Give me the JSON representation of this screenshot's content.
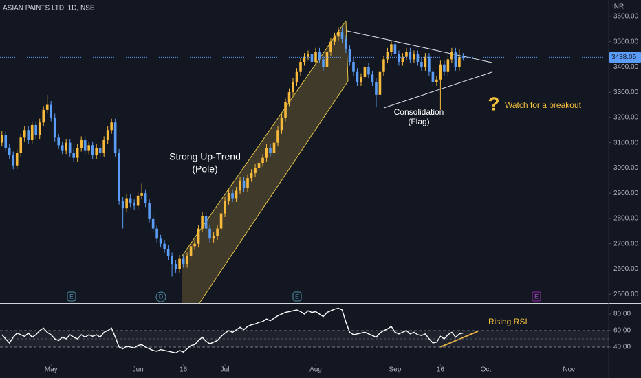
{
  "chart_data": [
    {
      "type": "candlestick",
      "title": "ASIAN PAINTS LTD, 1D, NSE",
      "y_axis_label": "INR",
      "up_color": "#f6b93b",
      "down_color": "#5b9cf6",
      "xlim": [
        -0.5,
        160.5
      ],
      "xticks": [
        {
          "value": 13,
          "label": "May"
        },
        {
          "value": 36,
          "label": "Jun"
        },
        {
          "value": 48,
          "label": "16"
        },
        {
          "value": 59,
          "label": "Jul"
        },
        {
          "value": 83,
          "label": "Aug"
        },
        {
          "value": 104,
          "label": "Sep"
        },
        {
          "value": 116,
          "label": "16"
        },
        {
          "value": 128,
          "label": "Oct"
        },
        {
          "value": 150,
          "label": "Nov"
        }
      ],
      "ylim": [
        2465,
        3665
      ],
      "yticks": [
        {
          "value": 2500,
          "label": "2500.00"
        },
        {
          "value": 2600,
          "label": "2600.00"
        },
        {
          "value": 2700,
          "label": "2700.00"
        },
        {
          "value": 2800,
          "label": "2800.00"
        },
        {
          "value": 2900,
          "label": "2900.00"
        },
        {
          "value": 3000,
          "label": "3000.00"
        },
        {
          "value": 3100,
          "label": "3100.00"
        },
        {
          "value": 3200,
          "label": "3200.00"
        },
        {
          "value": 3300,
          "label": "3300.00"
        },
        {
          "value": 3400,
          "label": "3400.00"
        },
        {
          "value": 3500,
          "label": "3500.00"
        },
        {
          "value": 3600,
          "label": "3600.00"
        }
      ],
      "open": [
        3100,
        3130,
        3080,
        3050,
        3010,
        3060,
        3120,
        3150,
        3110,
        3170,
        3130,
        3180,
        3230,
        3250,
        3200,
        3120,
        3090,
        3070,
        3100,
        3060,
        3040,
        3080,
        3110,
        3070,
        3090,
        3050,
        3080,
        3060,
        3110,
        3150,
        3180,
        3060,
        2870,
        2840,
        2880,
        2860,
        2850,
        2890,
        2900,
        2860,
        2800,
        2760,
        2720,
        2700,
        2680,
        2650,
        2620,
        2600,
        2640,
        2620,
        2650,
        2690,
        2700,
        2760,
        2810,
        2760,
        2720,
        2730,
        2760,
        2820,
        2870,
        2900,
        2880,
        2910,
        2950,
        2920,
        2960,
        2980,
        3000,
        3020,
        3040,
        3080,
        3060,
        3100,
        3150,
        3200,
        3260,
        3300,
        3340,
        3380,
        3420,
        3440,
        3450,
        3420,
        3460,
        3430,
        3400,
        3460,
        3500,
        3520,
        3540,
        3510,
        3470,
        3420,
        3380,
        3340,
        3360,
        3400,
        3370,
        3340,
        3290,
        3380,
        3430,
        3460,
        3490,
        3450,
        3420,
        3440,
        3460,
        3430,
        3450,
        3420,
        3400,
        3440,
        3380,
        3340,
        3350,
        3410,
        3380,
        3430,
        3460,
        3400,
        3440
      ],
      "high": [
        3145,
        3145,
        3095,
        3065,
        3075,
        3135,
        3165,
        3165,
        3185,
        3185,
        3195,
        3245,
        3290,
        3265,
        3215,
        3135,
        3105,
        3115,
        3115,
        3075,
        3095,
        3125,
        3125,
        3105,
        3105,
        3095,
        3095,
        3125,
        3165,
        3195,
        3195,
        3075,
        2885,
        2895,
        2895,
        2875,
        2905,
        2940,
        2915,
        2875,
        2815,
        2775,
        2735,
        2715,
        2695,
        2665,
        2635,
        2655,
        2655,
        2665,
        2705,
        2715,
        2775,
        2825,
        2825,
        2775,
        2745,
        2775,
        2835,
        2885,
        2915,
        2915,
        2925,
        2965,
        2965,
        2975,
        2995,
        3015,
        3035,
        3055,
        3095,
        3095,
        3115,
        3165,
        3215,
        3275,
        3315,
        3355,
        3395,
        3435,
        3455,
        3465,
        3465,
        3475,
        3475,
        3445,
        3475,
        3515,
        3535,
        3555,
        3555,
        3525,
        3485,
        3435,
        3395,
        3375,
        3415,
        3415,
        3385,
        3355,
        3395,
        3445,
        3475,
        3505,
        3505,
        3465,
        3455,
        3475,
        3475,
        3465,
        3465,
        3435,
        3455,
        3455,
        3395,
        3365,
        3425,
        3425,
        3445,
        3475,
        3475,
        3470,
        3455
      ],
      "low": [
        3085,
        3065,
        3035,
        2995,
        2995,
        3045,
        3105,
        3095,
        3095,
        3115,
        3115,
        3165,
        3215,
        3185,
        3105,
        3075,
        3055,
        3055,
        3045,
        3025,
        3025,
        3065,
        3055,
        3055,
        3035,
        3035,
        3045,
        3045,
        3095,
        3135,
        3045,
        2855,
        2760,
        2825,
        2845,
        2835,
        2835,
        2875,
        2845,
        2785,
        2745,
        2705,
        2685,
        2665,
        2635,
        2570,
        2585,
        2585,
        2605,
        2605,
        2635,
        2675,
        2685,
        2745,
        2745,
        2705,
        2705,
        2715,
        2745,
        2805,
        2855,
        2865,
        2865,
        2895,
        2905,
        2905,
        2945,
        2965,
        2985,
        3005,
        3025,
        3045,
        3045,
        3085,
        3135,
        3185,
        3245,
        3285,
        3325,
        3365,
        3405,
        3425,
        3405,
        3405,
        3415,
        3385,
        3385,
        3445,
        3485,
        3505,
        3495,
        3455,
        3405,
        3365,
        3325,
        3325,
        3345,
        3355,
        3325,
        3240,
        3275,
        3365,
        3415,
        3445,
        3435,
        3405,
        3405,
        3425,
        3415,
        3415,
        3405,
        3385,
        3385,
        3365,
        3325,
        3325,
        3230,
        3365,
        3365,
        3415,
        3385,
        3385,
        3425
      ],
      "close": [
        3130,
        3080,
        3050,
        3010,
        3060,
        3120,
        3150,
        3110,
        3170,
        3130,
        3180,
        3230,
        3250,
        3200,
        3120,
        3090,
        3070,
        3100,
        3060,
        3040,
        3080,
        3110,
        3070,
        3090,
        3050,
        3080,
        3060,
        3110,
        3150,
        3180,
        3060,
        2870,
        2840,
        2880,
        2860,
        2850,
        2890,
        2900,
        2860,
        2800,
        2760,
        2720,
        2700,
        2680,
        2650,
        2620,
        2600,
        2640,
        2620,
        2650,
        2690,
        2700,
        2760,
        2810,
        2760,
        2720,
        2730,
        2760,
        2820,
        2870,
        2900,
        2880,
        2910,
        2950,
        2920,
        2960,
        2980,
        3000,
        3020,
        3040,
        3080,
        3060,
        3100,
        3150,
        3200,
        3260,
        3300,
        3340,
        3380,
        3420,
        3440,
        3450,
        3420,
        3460,
        3430,
        3400,
        3460,
        3500,
        3520,
        3540,
        3510,
        3470,
        3420,
        3380,
        3340,
        3360,
        3400,
        3370,
        3340,
        3290,
        3380,
        3430,
        3460,
        3490,
        3450,
        3420,
        3440,
        3460,
        3430,
        3450,
        3420,
        3400,
        3440,
        3380,
        3340,
        3350,
        3410,
        3380,
        3430,
        3460,
        3400,
        3440,
        3438.05
      ],
      "annotations": [
        "Strong Up-Trend",
        "(Pole)",
        "Consolidation",
        "(Flag)",
        "?",
        "Watch for a breakout"
      ],
      "events": [
        "E",
        "D",
        "E",
        "E"
      ]
    },
    {
      "type": "line",
      "color": "#ffffff",
      "annotation": "Rising RSI",
      "ylim": [
        20,
        90
      ],
      "yticks": [
        {
          "value": 40,
          "label": "40.00"
        },
        {
          "value": 60,
          "label": "60.00"
        },
        {
          "value": 80,
          "label": "80.00"
        }
      ],
      "values": [
        55,
        50,
        45,
        52,
        57,
        55,
        53,
        57,
        52,
        55,
        60,
        63,
        58,
        55,
        50,
        48,
        52,
        50,
        55,
        52,
        50,
        55,
        52,
        55,
        53,
        55,
        52,
        58,
        60,
        63,
        52,
        40,
        38,
        41,
        40,
        39,
        42,
        43,
        40,
        38,
        36,
        35,
        37,
        36,
        35,
        34,
        33,
        36,
        34,
        38,
        42,
        43,
        48,
        52,
        47,
        44,
        46,
        48,
        53,
        57,
        60,
        58,
        61,
        64,
        61,
        65,
        67,
        68,
        70,
        71,
        74,
        72,
        75,
        78,
        80,
        82,
        83,
        84,
        85,
        83,
        80,
        84,
        82,
        83,
        80,
        77,
        82,
        84,
        86,
        87,
        85,
        70,
        58,
        55,
        56,
        57,
        58,
        56,
        54,
        52,
        57,
        60,
        62,
        65,
        58,
        56,
        58,
        60,
        56,
        58,
        55,
        54,
        56,
        50,
        45,
        46,
        53,
        50,
        55,
        58,
        52,
        56,
        57
      ]
    }
  ]
}
